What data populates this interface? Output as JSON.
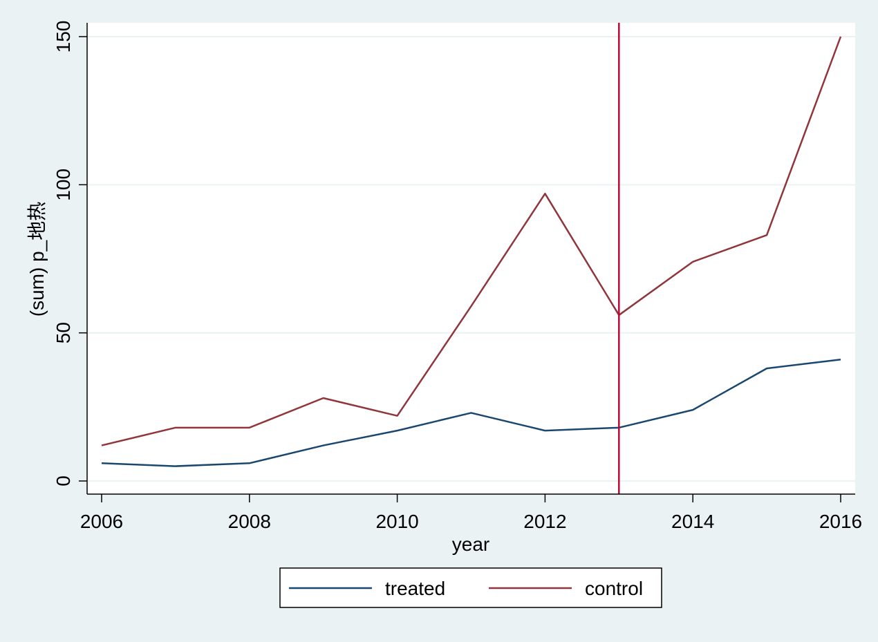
{
  "chart_data": {
    "type": "line",
    "xlabel": "year",
    "ylabel": "(sum) p_地热",
    "x": [
      2006,
      2007,
      2008,
      2009,
      2010,
      2011,
      2012,
      2013,
      2014,
      2015,
      2016
    ],
    "xticks": [
      "2006",
      "2008",
      "2010",
      "2012",
      "2014",
      "2016"
    ],
    "yticks": [
      "0",
      "50",
      "100",
      "150"
    ],
    "xlim": [
      2006,
      2016
    ],
    "ylim": [
      0,
      150
    ],
    "grid": true,
    "legend_position": "bottom",
    "series": [
      {
        "name": "treated",
        "color": "#1a476f",
        "values": [
          6,
          5,
          6,
          12,
          17,
          23,
          17,
          18,
          24,
          38,
          41
        ]
      },
      {
        "name": "control",
        "color": "#90353b",
        "values": [
          12,
          18,
          18,
          28,
          22,
          59,
          97,
          56,
          74,
          83,
          150
        ]
      }
    ],
    "reference_line": {
      "x": 2013,
      "color": "#c10534"
    },
    "colors": {
      "background": "#eaf2f3",
      "plot_background": "#ffffff",
      "gridline": "#eaf2f3"
    }
  }
}
